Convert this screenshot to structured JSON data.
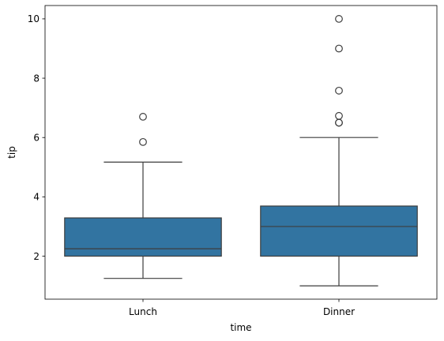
{
  "chart_data": {
    "type": "boxplot",
    "xlabel": "time",
    "ylabel": "tip",
    "categories": [
      "Lunch",
      "Dinner"
    ],
    "ylim": [
      0.55,
      10.45
    ],
    "yticks": [
      2,
      4,
      6,
      8,
      10
    ],
    "box_color": "#3274a1",
    "line_color": "#3d3d3d",
    "boxes": [
      {
        "category": "Lunch",
        "whisker_low": 1.25,
        "q1": 2.0,
        "median": 2.25,
        "q3": 3.29,
        "whisker_high": 5.17,
        "outliers": [
          5.85,
          6.7
        ]
      },
      {
        "category": "Dinner",
        "whisker_low": 1.0,
        "q1": 2.0,
        "median": 3.0,
        "q3": 3.69,
        "whisker_high": 6.0,
        "outliers": [
          6.5,
          6.5,
          6.73,
          7.58,
          9.0,
          10.0
        ]
      }
    ]
  }
}
